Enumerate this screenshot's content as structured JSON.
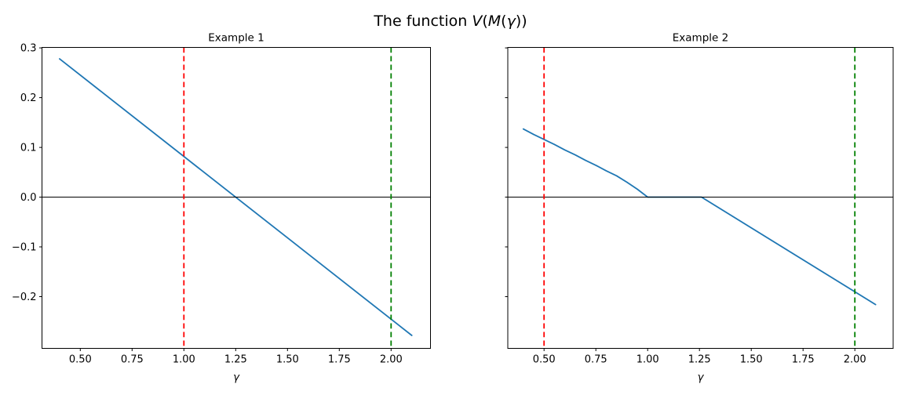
{
  "figure": {
    "suptitle": "The function V(M(γ))",
    "suptitle_parts": [
      {
        "text": "The function ",
        "italic": false
      },
      {
        "text": "V",
        "italic": true
      },
      {
        "text": "(",
        "italic": false
      },
      {
        "text": "M",
        "italic": true
      },
      {
        "text": "(",
        "italic": false
      },
      {
        "text": "γ",
        "italic": true
      },
      {
        "text": "))",
        "italic": false
      }
    ],
    "background_color": "#ffffff",
    "text_color": "#000000"
  },
  "chart_data": [
    {
      "type": "line",
      "title": "Example 1",
      "xlabel": "γ",
      "ylabel": "",
      "xlim": [
        0.315,
        2.19
      ],
      "ylim": [
        -0.304,
        0.301
      ],
      "grid": false,
      "legend": null,
      "xtick_values": [
        0.5,
        0.75,
        1.0,
        1.25,
        1.5,
        1.75,
        2.0
      ],
      "xtick_labels": [
        "0.50",
        "0.75",
        "1.00",
        "1.25",
        "1.50",
        "1.75",
        "2.00"
      ],
      "ytick_values": [
        0.3,
        0.2,
        0.1,
        0.0,
        -0.1,
        -0.2
      ],
      "ytick_labels": [
        "0.3",
        "0.2",
        "0.1",
        "0.0",
        "−0.1",
        "−0.2"
      ],
      "show_ytick_labels": true,
      "series": [
        {
          "name": "V(M(gamma))",
          "color": "#1f77b4",
          "line_style": "solid",
          "line_width": 1.8,
          "points": [
            [
              0.4,
              0.278
            ],
            [
              2.1,
              -0.278
            ]
          ],
          "zero_crossing": 1.26
        }
      ],
      "hlines": [
        {
          "y": 0.0,
          "color": "#000000",
          "line_style": "solid"
        }
      ],
      "vlines": [
        {
          "x": 1.0,
          "color": "#ff0000",
          "line_style": "dashed"
        },
        {
          "x": 2.0,
          "color": "#008000",
          "line_style": "dashed"
        }
      ]
    },
    {
      "type": "line",
      "title": "Example 2",
      "xlabel": "γ",
      "ylabel": "",
      "xlim": [
        0.325,
        2.185
      ],
      "ylim": [
        -0.304,
        0.301
      ],
      "grid": false,
      "legend": null,
      "xtick_values": [
        0.5,
        0.75,
        1.0,
        1.25,
        1.5,
        1.75,
        2.0
      ],
      "xtick_labels": [
        "0.50",
        "0.75",
        "1.00",
        "1.25",
        "1.50",
        "1.75",
        "2.00"
      ],
      "ytick_values": [
        0.3,
        0.2,
        0.1,
        0.0,
        -0.1,
        -0.2
      ],
      "ytick_labels": [
        "0.3",
        "0.2",
        "0.1",
        "0.0",
        "−0.1",
        "−0.2"
      ],
      "show_ytick_labels": false,
      "series": [
        {
          "name": "V(M(gamma))",
          "color": "#1f77b4",
          "line_style": "solid",
          "line_width": 1.8,
          "points": [
            [
              0.4,
              0.137
            ],
            [
              0.45,
              0.126
            ],
            [
              0.5,
              0.116
            ],
            [
              0.55,
              0.106
            ],
            [
              0.6,
              0.095
            ],
            [
              0.65,
              0.085
            ],
            [
              0.7,
              0.074
            ],
            [
              0.75,
              0.064
            ],
            [
              0.8,
              0.053
            ],
            [
              0.85,
              0.043
            ],
            [
              0.9,
              0.03
            ],
            [
              0.95,
              0.016
            ],
            [
              1.0,
              0.0
            ],
            [
              1.26,
              0.0
            ],
            [
              2.1,
              -0.216
            ]
          ],
          "flat_zero_segment": [
            1.0,
            1.26
          ]
        }
      ],
      "hlines": [
        {
          "y": 0.0,
          "color": "#000000",
          "line_style": "solid"
        }
      ],
      "vlines": [
        {
          "x": 0.5,
          "color": "#ff0000",
          "line_style": "dashed"
        },
        {
          "x": 2.0,
          "color": "#008000",
          "line_style": "dashed"
        }
      ]
    }
  ]
}
